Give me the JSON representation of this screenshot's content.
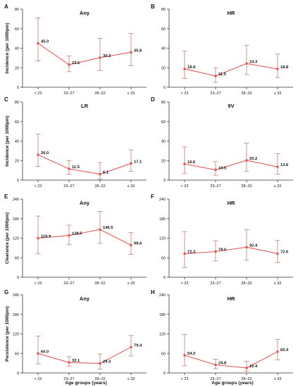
{
  "colors": {
    "series": "#e05a5a",
    "error_bar": "#c49080",
    "axis": "#333333",
    "text": "#111111"
  },
  "shared": {
    "categories": [
      "< 23",
      "23–27",
      "28–32",
      "≥ 33"
    ],
    "xlabel": "Age groups (years)"
  },
  "chart_data": [
    {
      "type": "line",
      "letter": "A",
      "title": "Any",
      "ylabel": "Incidence (per 1000pm)",
      "ylim": [
        0,
        80
      ],
      "yticks": [
        0,
        20,
        40,
        60,
        80
      ],
      "categories": [
        "< 23",
        "23–27",
        "28–32",
        "≥ 33"
      ],
      "series": [
        {
          "values": [
            45.0,
            23.1,
            30.3,
            35.8
          ],
          "labels": [
            "45.0",
            "23.1",
            "30.3",
            "35.8"
          ],
          "lower": [
            27,
            16,
            17,
            22
          ],
          "upper": [
            71,
            32,
            50,
            55
          ]
        }
      ]
    },
    {
      "type": "line",
      "letter": "B",
      "title": "HR",
      "ylabel": "",
      "ylim": [
        0,
        80
      ],
      "yticks": [
        0,
        20,
        40,
        60,
        80
      ],
      "categories": [
        "< 23",
        "23–27",
        "28–32",
        "≥ 33"
      ],
      "series": [
        {
          "values": [
            18.9,
            11.5,
            24.3,
            18.8
          ],
          "labels": [
            "18.9",
            "11.5",
            "24.3",
            "18.8"
          ],
          "lower": [
            9,
            5,
            13,
            10
          ],
          "upper": [
            37,
            20,
            43,
            34
          ]
        }
      ]
    },
    {
      "type": "line",
      "letter": "C",
      "title": "LR",
      "ylabel": "Incidence (per 1000pm)",
      "ylim": [
        0,
        80
      ],
      "yticks": [
        0,
        20,
        40,
        60,
        80
      ],
      "categories": [
        "< 23",
        "23–27",
        "28–32",
        "≥ 33"
      ],
      "series": [
        {
          "values": [
            26.0,
            11.5,
            6.1,
            17.1
          ],
          "labels": [
            "26.0",
            "11.5",
            "6.1",
            "17.1"
          ],
          "lower": [
            14,
            6,
            1,
            9
          ],
          "upper": [
            47,
            20,
            18,
            31
          ]
        }
      ]
    },
    {
      "type": "line",
      "letter": "D",
      "title": "9V",
      "ylabel": "",
      "ylim": [
        0,
        80
      ],
      "yticks": [
        0,
        20,
        40,
        60,
        80
      ],
      "categories": [
        "< 23",
        "23–27",
        "28–32",
        "≥ 33"
      ],
      "series": [
        {
          "values": [
            16.6,
            10.5,
            20.2,
            13.6
          ],
          "labels": [
            "16.6",
            "10.5",
            "20.2",
            "13.6"
          ],
          "lower": [
            7,
            5,
            9,
            6
          ],
          "upper": [
            34,
            19,
            38,
            27
          ]
        }
      ]
    },
    {
      "type": "line",
      "letter": "E",
      "title": "Any",
      "ylabel": "Clearance (per 1000pm)",
      "ylim": [
        0,
        240
      ],
      "yticks": [
        0,
        60,
        120,
        180,
        240
      ],
      "categories": [
        "< 23",
        "23–27",
        "28–32",
        "≥ 33"
      ],
      "series": [
        {
          "values": [
            119.9,
            128.5,
            146.5,
            98.6
          ],
          "labels": [
            "119.9",
            "128.5",
            "146.5",
            "98.6"
          ],
          "lower": [
            72,
            100,
            104,
            70
          ],
          "upper": [
            188,
            160,
            202,
            137
          ]
        }
      ]
    },
    {
      "type": "line",
      "letter": "F",
      "title": "HR",
      "ylabel": "",
      "ylim": [
        0,
        240
      ],
      "yticks": [
        0,
        60,
        120,
        180,
        240
      ],
      "categories": [
        "< 23",
        "23–27",
        "28–32",
        "≥ 33"
      ],
      "series": [
        {
          "values": [
            72.3,
            79.0,
            92.4,
            72.6
          ],
          "labels": [
            "72.3",
            "79.0",
            "92.4",
            "72.6"
          ],
          "lower": [
            30,
            50,
            52,
            45
          ],
          "upper": [
            140,
            112,
            146,
            113
          ]
        }
      ]
    },
    {
      "type": "line",
      "letter": "G",
      "title": "Any",
      "ylabel": "Persistence (per 1000pm)",
      "ylim": [
        0,
        240
      ],
      "yticks": [
        0,
        60,
        120,
        180,
        240
      ],
      "categories": [
        "< 23",
        "23–27",
        "28–32",
        "≥ 33"
      ],
      "series": [
        {
          "values": [
            60.0,
            32.1,
            29.3,
            79.4
          ],
          "labels": [
            "60.0",
            "32.1",
            "29.3",
            "79.4"
          ],
          "lower": [
            28,
            20,
            12,
            52
          ],
          "upper": [
            113,
            50,
            58,
            115
          ]
        }
      ]
    },
    {
      "type": "line",
      "letter": "H",
      "title": "HR",
      "ylabel": "",
      "ylim": [
        0,
        240
      ],
      "yticks": [
        0,
        60,
        120,
        180,
        240
      ],
      "categories": [
        "< 23",
        "23–27",
        "28–32",
        "≥ 33"
      ],
      "series": [
        {
          "values": [
            54.2,
            24.8,
            15.4,
            65.4
          ],
          "labels": [
            "54.2",
            "24.8",
            "15.4",
            "65.4"
          ],
          "lower": [
            22,
            13,
            5,
            40
          ],
          "upper": [
            118,
            42,
            36,
            103
          ]
        }
      ]
    }
  ]
}
